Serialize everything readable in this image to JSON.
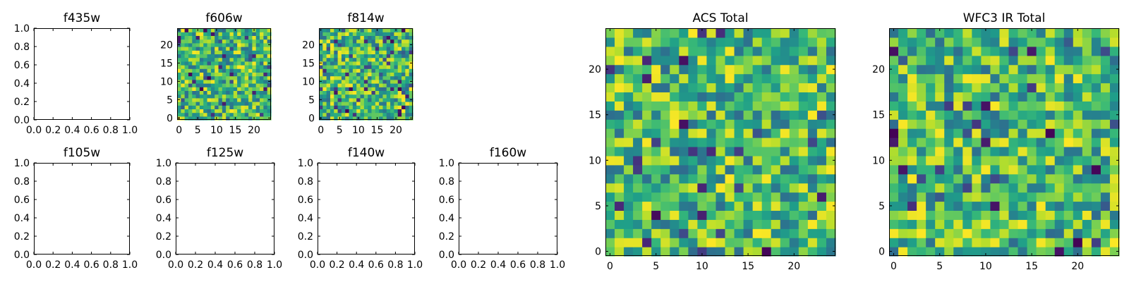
{
  "figure_title": "",
  "chart_data": [
    {
      "type": "heatmap",
      "id": "f435w",
      "title": "f435w",
      "empty": true,
      "xlim": [
        0,
        1
      ],
      "ylim": [
        0,
        1
      ],
      "xticks": [
        "0.0",
        "0.2",
        "0.4",
        "0.6",
        "0.8",
        "1.0"
      ],
      "yticks": [
        "0.0",
        "0.2",
        "0.4",
        "0.6",
        "0.8",
        "1.0"
      ]
    },
    {
      "type": "heatmap",
      "id": "f606w",
      "title": "f606w",
      "empty": false,
      "grid_size": 25,
      "seed": 606,
      "colormap": "viridis",
      "xticks": [
        "0",
        "5",
        "10",
        "15",
        "20"
      ],
      "yticks": [
        "0",
        "5",
        "10",
        "15",
        "20"
      ]
    },
    {
      "type": "heatmap",
      "id": "f814w",
      "title": "f814w",
      "empty": false,
      "grid_size": 25,
      "seed": 814,
      "colormap": "viridis",
      "xticks": [
        "0",
        "5",
        "10",
        "15",
        "20"
      ],
      "yticks": [
        "0",
        "5",
        "10",
        "15",
        "20"
      ]
    },
    {
      "type": "heatmap",
      "id": "f105w",
      "title": "f105w",
      "empty": true,
      "xlim": [
        0,
        1
      ],
      "ylim": [
        0,
        1
      ],
      "xticks": [
        "0.0",
        "0.2",
        "0.4",
        "0.6",
        "0.8",
        "1.0"
      ],
      "yticks": [
        "0.0",
        "0.2",
        "0.4",
        "0.6",
        "0.8",
        "1.0"
      ]
    },
    {
      "type": "heatmap",
      "id": "f125w",
      "title": "f125w",
      "empty": true,
      "xlim": [
        0,
        1
      ],
      "ylim": [
        0,
        1
      ],
      "xticks": [
        "0.0",
        "0.2",
        "0.4",
        "0.6",
        "0.8",
        "1.0"
      ],
      "yticks": [
        "0.0",
        "0.2",
        "0.4",
        "0.6",
        "0.8",
        "1.0"
      ]
    },
    {
      "type": "heatmap",
      "id": "f140w",
      "title": "f140w",
      "empty": true,
      "xlim": [
        0,
        1
      ],
      "ylim": [
        0,
        1
      ],
      "xticks": [
        "0.0",
        "0.2",
        "0.4",
        "0.6",
        "0.8",
        "1.0"
      ],
      "yticks": [
        "0.0",
        "0.2",
        "0.4",
        "0.6",
        "0.8",
        "1.0"
      ]
    },
    {
      "type": "heatmap",
      "id": "f160w",
      "title": "f160w",
      "empty": true,
      "xlim": [
        0,
        1
      ],
      "ylim": [
        0,
        1
      ],
      "xticks": [
        "0.0",
        "0.2",
        "0.4",
        "0.6",
        "0.8",
        "1.0"
      ],
      "yticks": [
        "0.0",
        "0.2",
        "0.4",
        "0.6",
        "0.8",
        "1.0"
      ]
    },
    {
      "type": "heatmap",
      "id": "acs-total",
      "title": "ACS Total",
      "empty": false,
      "grid_size": 25,
      "seed": 42,
      "colormap": "viridis",
      "xticks": [
        "0",
        "5",
        "10",
        "15",
        "20"
      ],
      "yticks": [
        "0",
        "5",
        "10",
        "15",
        "20"
      ]
    },
    {
      "type": "heatmap",
      "id": "wfc3-ir-total",
      "title": "WFC3 IR Total",
      "empty": false,
      "grid_size": 25,
      "seed": 7,
      "colormap": "viridis",
      "xticks": [
        "0",
        "5",
        "10",
        "15",
        "20"
      ],
      "yticks": [
        "0",
        "5",
        "10",
        "15",
        "20"
      ]
    }
  ]
}
